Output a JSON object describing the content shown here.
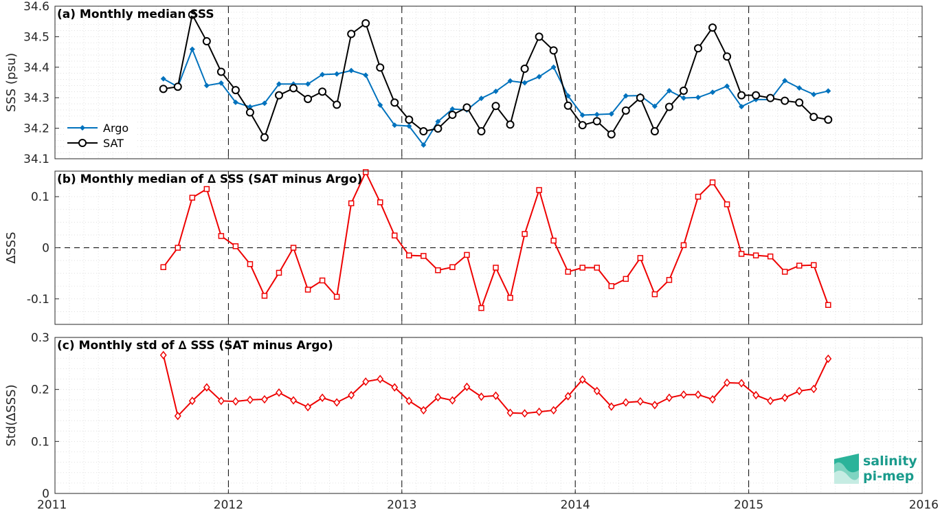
{
  "figure": {
    "x_ticks": [
      "2011",
      "2012",
      "2013",
      "2014",
      "2015",
      "2016"
    ],
    "x_range": [
      2011,
      2016
    ],
    "logo": {
      "line1": "salinity",
      "line2": "pi-mep"
    }
  },
  "colors": {
    "argo": "#0072bd",
    "sat": "#000000",
    "delta": "#ee0000"
  },
  "chart_data": [
    {
      "type": "line",
      "title": "(a) Monthly median SSS",
      "ylabel": "SSS (psu)",
      "ylim": [
        34.1,
        34.6
      ],
      "yticks": [
        "34.1",
        "34.2",
        "34.3",
        "34.4",
        "34.5",
        "34.6"
      ],
      "legend": "left",
      "grid": true,
      "series": [
        {
          "name": "Argo",
          "values": [
            34.362,
            34.336,
            34.459,
            34.34,
            34.348,
            34.285,
            34.27,
            34.282,
            34.345,
            34.345,
            34.345,
            34.376,
            34.378,
            34.389,
            34.374,
            34.276,
            34.21,
            34.207,
            34.145,
            34.222,
            34.263,
            34.26,
            34.298,
            34.321,
            34.355,
            34.349,
            34.369,
            34.4,
            34.306,
            34.243,
            34.245,
            34.247,
            34.306,
            34.307,
            34.272,
            34.323,
            34.299,
            34.301,
            34.318,
            34.338,
            34.271,
            34.294,
            34.294,
            34.356,
            34.332,
            34.311,
            34.322
          ]
        },
        {
          "name": "SAT",
          "values": [
            34.329,
            34.336,
            34.572,
            34.485,
            34.385,
            34.325,
            34.252,
            34.17,
            34.308,
            34.331,
            34.296,
            34.32,
            34.277,
            34.509,
            34.544,
            34.399,
            34.284,
            34.228,
            34.19,
            34.199,
            34.244,
            34.268,
            34.19,
            34.273,
            34.212,
            34.395,
            34.5,
            34.455,
            34.274,
            34.21,
            34.223,
            34.18,
            34.258,
            34.3,
            34.19,
            34.27,
            34.323,
            34.462,
            34.53,
            34.435,
            34.308,
            34.308,
            34.299,
            34.29,
            34.284,
            34.237,
            34.228
          ]
        }
      ]
    },
    {
      "type": "line",
      "title": "(b) Monthly median of ∆ SSS (SAT minus Argo)",
      "ylabel": "∆SSS",
      "ylim": [
        -0.15,
        0.15
      ],
      "yticks": [
        "-0.1",
        "0",
        "0.1"
      ],
      "grid": true,
      "series": [
        {
          "name": "",
          "values": [
            -0.038,
            0.0,
            0.098,
            0.115,
            0.023,
            0.003,
            -0.032,
            -0.094,
            -0.049,
            0.0,
            -0.082,
            -0.064,
            -0.096,
            0.087,
            0.148,
            0.089,
            0.024,
            -0.015,
            -0.016,
            -0.044,
            -0.038,
            -0.014,
            -0.118,
            -0.039,
            -0.098,
            0.027,
            0.113,
            0.014,
            -0.047,
            -0.039,
            -0.039,
            -0.075,
            -0.061,
            -0.02,
            -0.091,
            -0.063,
            0.005,
            0.1,
            0.128,
            0.085,
            -0.012,
            -0.015,
            -0.017,
            -0.047,
            -0.035,
            -0.034,
            -0.112
          ]
        }
      ]
    },
    {
      "type": "line",
      "title": "(c) Monthly std of ∆ SSS (SAT minus Argo)",
      "ylabel": "Std(∆SSS)",
      "ylim": [
        0,
        0.3
      ],
      "yticks": [
        "0",
        "0.1",
        "0.2",
        "0.3"
      ],
      "grid": true,
      "series": [
        {
          "name": "",
          "values": [
            0.266,
            0.149,
            0.178,
            0.204,
            0.178,
            0.177,
            0.18,
            0.181,
            0.194,
            0.179,
            0.166,
            0.184,
            0.175,
            0.189,
            0.215,
            0.22,
            0.204,
            0.178,
            0.16,
            0.185,
            0.179,
            0.205,
            0.186,
            0.188,
            0.155,
            0.154,
            0.157,
            0.16,
            0.187,
            0.219,
            0.197,
            0.167,
            0.175,
            0.177,
            0.17,
            0.184,
            0.19,
            0.19,
            0.181,
            0.213,
            0.212,
            0.189,
            0.178,
            0.184,
            0.197,
            0.201,
            0.259
          ]
        }
      ]
    }
  ]
}
